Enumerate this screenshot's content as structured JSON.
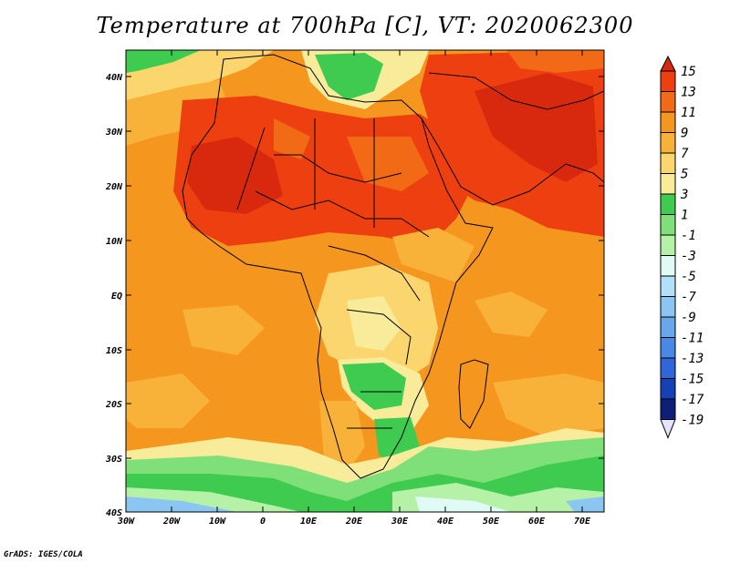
{
  "title": "Temperature at 700hPa [C], VT: 2020062300",
  "credit": "GrADS: IGES/COLA",
  "lat_ticks": [
    "40N",
    "30N",
    "20N",
    "10N",
    "EQ",
    "10S",
    "20S",
    "30S",
    "40S"
  ],
  "lon_ticks": [
    "30W",
    "20W",
    "10W",
    "0",
    "10E",
    "20E",
    "30E",
    "40E",
    "50E",
    "60E",
    "70E"
  ],
  "colorbar": {
    "labels": [
      "15",
      "13",
      "11",
      "9",
      "7",
      "5",
      "3",
      "1",
      "-1",
      "-3",
      "-5",
      "-7",
      "-9",
      "-11",
      "-13",
      "-15",
      "-17",
      "-19"
    ],
    "colors": [
      "#d8290e",
      "#ee3f10",
      "#f26a16",
      "#f5961f",
      "#f8b23a",
      "#fbd56e",
      "#f8ec9b",
      "#3ecb4f",
      "#7fe07a",
      "#b5f2a8",
      "#e0fbf6",
      "#b0e1f8",
      "#8bc5f2",
      "#6aa6ec",
      "#4a88e6",
      "#2f66d8",
      "#1640b4",
      "#0d2078",
      "#e7e2fb"
    ]
  }
}
